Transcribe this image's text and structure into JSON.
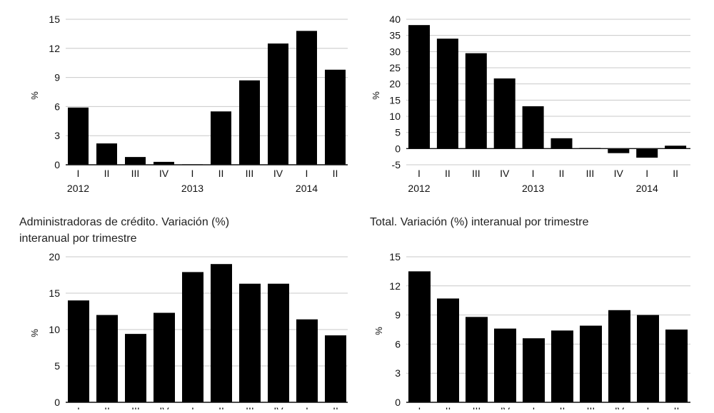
{
  "chart_data": [
    {
      "type": "bar",
      "title_lines": [],
      "ylabel": "%",
      "ylim": [
        0,
        15
      ],
      "yticks": [
        0,
        3,
        6,
        9,
        12,
        15
      ],
      "categories": [
        "I",
        "II",
        "III",
        "IV",
        "I",
        "II",
        "III",
        "IV",
        "I",
        "II"
      ],
      "year_labels": [
        {
          "label": "2012",
          "index": 0
        },
        {
          "label": "2013",
          "index": 4
        },
        {
          "label": "2014",
          "index": 8
        }
      ],
      "values": [
        5.9,
        2.2,
        0.8,
        0.3,
        0.05,
        5.5,
        8.7,
        12.5,
        13.8,
        9.8
      ],
      "grid": true
    },
    {
      "type": "bar",
      "title_lines": [],
      "ylabel": "%",
      "ylim": [
        -5,
        40
      ],
      "yticks": [
        -5,
        0,
        5,
        10,
        15,
        20,
        25,
        30,
        35,
        40
      ],
      "categories": [
        "I",
        "II",
        "III",
        "IV",
        "I",
        "II",
        "III",
        "IV",
        "I",
        "II"
      ],
      "year_labels": [
        {
          "label": "2012",
          "index": 0
        },
        {
          "label": "2013",
          "index": 4
        },
        {
          "label": "2014",
          "index": 8
        }
      ],
      "values": [
        38.2,
        34.0,
        29.5,
        21.7,
        13.1,
        3.2,
        0.2,
        -1.4,
        -2.8,
        0.9
      ],
      "grid": true
    },
    {
      "type": "bar",
      "title_lines": [
        "Administradoras de crédito. Variación (%)",
        "interanual por trimestre"
      ],
      "ylabel": "%",
      "ylim": [
        0,
        20
      ],
      "yticks": [
        0,
        5,
        10,
        15,
        20
      ],
      "categories": [
        "I",
        "II",
        "III",
        "IV",
        "I",
        "II",
        "III",
        "IV",
        "I",
        "II"
      ],
      "year_labels": [],
      "values": [
        14.0,
        12.0,
        9.4,
        12.3,
        17.9,
        19.0,
        16.3,
        16.3,
        11.4,
        9.2
      ],
      "grid": true
    },
    {
      "type": "bar",
      "title_lines": [
        "Total. Variación (%) interanual por trimestre"
      ],
      "ylabel": "%",
      "ylim": [
        0,
        15
      ],
      "yticks": [
        0,
        3,
        6,
        9,
        12,
        15
      ],
      "categories": [
        "I",
        "II",
        "III",
        "IV",
        "I",
        "II",
        "III",
        "IV",
        "I",
        "II"
      ],
      "year_labels": [],
      "values": [
        13.5,
        10.7,
        8.8,
        7.6,
        6.6,
        7.4,
        7.9,
        9.5,
        9.0,
        7.5
      ],
      "grid": true
    }
  ]
}
